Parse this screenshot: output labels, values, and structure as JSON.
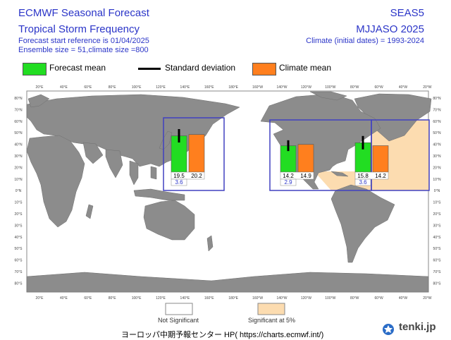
{
  "header": {
    "title": "ECMWF Seasonal Forecast",
    "subtitle": "Tropical Storm Frequency",
    "forecast_start": "Forecast start reference is 01/04/2025",
    "ensemble": "Ensemble size = 51,climate size =800",
    "system": "SEAS5",
    "period": "MJJASO 2025",
    "climate_dates": "Climate (initial dates) = 1993-2024"
  },
  "legend": {
    "forecast_mean": "Forecast mean",
    "standard_deviation": "Standard deviation",
    "climate_mean": "Climate mean"
  },
  "colors": {
    "forecast": "#22dd22",
    "climate": "#ff7f1e",
    "significant": "#fcdcb0",
    "land": "#8c8c8c",
    "box": "#4040c0",
    "title": "#2b35c8"
  },
  "map_axes": {
    "lon_labels": [
      "20°E",
      "40°E",
      "60°E",
      "80°E",
      "100°E",
      "120°E",
      "140°E",
      "160°E",
      "180°E",
      "160°W",
      "140°W",
      "120°W",
      "100°W",
      "80°W",
      "60°W",
      "40°W",
      "20°W"
    ],
    "lat_labels": [
      "80°N",
      "70°N",
      "60°N",
      "50°N",
      "40°N",
      "30°N",
      "20°N",
      "10°N",
      "0°N",
      "10°S",
      "20°S",
      "30°S",
      "40°S",
      "50°S",
      "60°S",
      "70°S",
      "80°S"
    ]
  },
  "chart_data": {
    "type": "bar",
    "title": "Tropical Storm Frequency",
    "ylim": [
      0,
      60
    ],
    "series": [
      {
        "name": "Forecast mean",
        "values": [
          19.5,
          14.2,
          15.8
        ]
      },
      {
        "name": "Climate mean",
        "values": [
          20.2,
          14.9,
          14.2
        ]
      }
    ],
    "standard_deviation": [
      3.6,
      2.9,
      3.6
    ],
    "regions": [
      {
        "forecast": "19.5",
        "climate": "20.2",
        "sd": "3.6",
        "significant": false
      },
      {
        "forecast": "14.2",
        "climate": "14.9",
        "sd": "2.9",
        "significant": false
      },
      {
        "forecast": "15.8",
        "climate": "14.2",
        "sd": "3.6",
        "significant": true
      }
    ]
  },
  "significance": {
    "not_significant": "Not Significant",
    "significant": "Significant at 5%"
  },
  "footer": {
    "credit": "ヨーロッパ中期予報センター HP( https://charts.ecmwf.int/)",
    "brand": "tenki.jp"
  }
}
